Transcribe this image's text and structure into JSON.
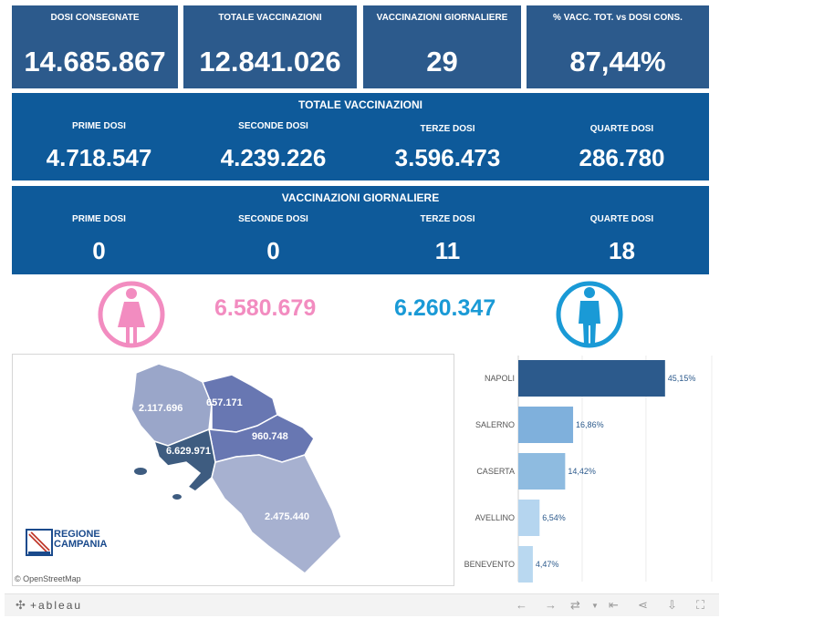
{
  "kpis": [
    {
      "label": "DOSI  CONSEGNATE",
      "value": "14.685.867"
    },
    {
      "label": "TOTALE VACCINAZIONI",
      "value": "12.841.026"
    },
    {
      "label": "VACCINAZIONI GIORNALIERE",
      "value": "29"
    },
    {
      "label": "% VACC. TOT. vs DOSI CONS.",
      "value": "87,44%"
    }
  ],
  "totale": {
    "title": "TOTALE VACCINAZIONI",
    "cols": [
      {
        "label": "PRIME DOSI",
        "value": "4.718.547"
      },
      {
        "label": "SECONDE DOSI",
        "value": "4.239.226"
      },
      {
        "label": "TERZE DOSI",
        "value": "3.596.473"
      },
      {
        "label": "QUARTE DOSI",
        "value": "286.780"
      }
    ]
  },
  "giornaliere": {
    "title": "VACCINAZIONI GIORNALIERE",
    "cols": [
      {
        "label": "PRIME DOSI",
        "value": "0"
      },
      {
        "label": "SECONDE DOSI",
        "value": "0"
      },
      {
        "label": "TERZE DOSI",
        "value": "11"
      },
      {
        "label": "QUARTE DOSI",
        "value": "18"
      }
    ]
  },
  "gender": {
    "female_value": "6.580.679",
    "male_value": "6.260.347",
    "female_color": "#f28cc0",
    "male_color": "#1a9ad6",
    "female_icon": "woman-icon",
    "male_icon": "man-icon"
  },
  "map": {
    "regions": [
      {
        "name": "Caserta",
        "value": "2.117.696"
      },
      {
        "name": "Benevento",
        "value": "657.171"
      },
      {
        "name": "Avellino",
        "value": "960.748"
      },
      {
        "name": "Napoli",
        "value": "6.629.971"
      },
      {
        "name": "Salerno",
        "value": "2.475.440"
      }
    ],
    "logo_line1": "REGIONE",
    "logo_line2": "CAMPANIA",
    "attribution": "© OpenStreetMap"
  },
  "chart_data": {
    "type": "bar",
    "orientation": "horizontal",
    "categories": [
      "NAPOLI",
      "SALERNO",
      "CASERTA",
      "AVELLINO",
      "BENEVENTO"
    ],
    "values": [
      45.15,
      16.86,
      14.42,
      6.54,
      4.47
    ],
    "labels": [
      "45,15%",
      "16,86%",
      "14,42%",
      "6,54%",
      "4,47%"
    ],
    "colors": [
      "#2c5a8c",
      "#7fb0dc",
      "#8ebbe0",
      "#b5d5ef",
      "#b9d8f0"
    ],
    "xlim": [
      0,
      50
    ],
    "grid": true
  },
  "toolbar": {
    "brand": "+ableau",
    "icons": [
      "undo-icon",
      "redo-icon",
      "revert-icon",
      "pause-icon",
      "share-icon",
      "download-icon",
      "fullscreen-icon"
    ]
  }
}
